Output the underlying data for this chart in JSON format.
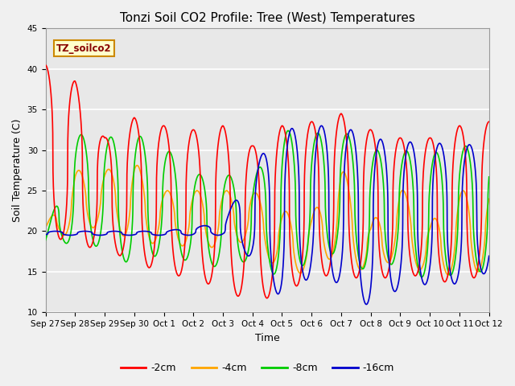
{
  "title": "Tonzi Soil CO2 Profile: Tree (West) Temperatures",
  "xlabel": "Time",
  "ylabel": "Soil Temperature (C)",
  "ylim": [
    10,
    45
  ],
  "xlim": [
    0,
    15
  ],
  "background_color": "#e8e8e8",
  "fig_bg_color": "#f0f0f0",
  "grid_color": "#ffffff",
  "annotation_label": "TZ_soilco2",
  "annotation_color": "#880000",
  "annotation_bg": "#ffffcc",
  "annotation_border": "#cc8800",
  "series_labels": [
    "-2cm",
    "-4cm",
    "-8cm",
    "-16cm"
  ],
  "series_colors": [
    "#ff0000",
    "#ffa500",
    "#00cc00",
    "#0000cc"
  ],
  "tick_labels": [
    "Sep 27",
    "Sep 28",
    "Sep 29",
    "Sep 30",
    "Oct 1",
    "Oct 2",
    "Oct 3",
    "Oct 4",
    "Oct 5",
    "Oct 6",
    "Oct 7",
    "Oct 8",
    "Oct 9",
    "Oct 10",
    "Oct 11",
    "Oct 12"
  ],
  "yticks": [
    10,
    15,
    20,
    25,
    30,
    35,
    40,
    45
  ],
  "line_width": 1.2,
  "title_fontsize": 11,
  "label_fontsize": 9,
  "tick_fontsize": 7.5,
  "legend_fontsize": 9
}
